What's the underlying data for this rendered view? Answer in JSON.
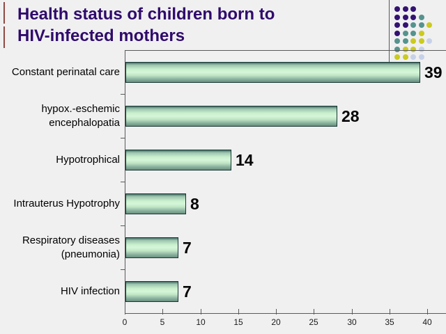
{
  "slide": {
    "title_lines": [
      "Health status of children born to",
      "HIV-infected mothers"
    ],
    "title_color": "#2f0a6b",
    "background": "#f0f0f1"
  },
  "decoration": {
    "accent_bar_color": "#8d4a42",
    "line_color": "#595959",
    "dots": {
      "pattern": [
        "PPP..",
        "PPPT.",
        "PPTTY",
        "PTTY.",
        "TTYYL",
        "TYYL.",
        "YYLL."
      ],
      "colors": {
        "P": "#331272",
        "T": "#55938e",
        "Y": "#cbca1e",
        "L": "#c6d1e9"
      }
    }
  },
  "chart_data": {
    "type": "bar",
    "orientation": "horizontal",
    "title": "",
    "categories": [
      "Constant perinatal care",
      "hypox.-eschemic encephalopatia",
      "Hypotrophical",
      "Intrauterus Hypotrophy",
      "Respiratory diseases (pneumonia)",
      "HIV infection"
    ],
    "category_lines": [
      [
        "Constant perinatal care"
      ],
      [
        "hypox.-eschemic",
        "encephalopatia"
      ],
      [
        "Hypotrophical"
      ],
      [
        "Intrauterus Hypotrophy"
      ],
      [
        "Respiratory diseases",
        "(pneumonia)"
      ],
      [
        "HIV infection"
      ]
    ],
    "values": [
      39,
      28,
      14,
      8,
      7,
      7
    ],
    "x_ticks": [
      0,
      5,
      10,
      15,
      20,
      25,
      30,
      35,
      40
    ],
    "xlim": [
      0,
      40
    ],
    "grid": false,
    "legend": false,
    "axis_color": "#595959",
    "tick_label_color": "#1a1a1a",
    "bar_outline_color": "#173733",
    "bar_gradient": [
      "#476f66",
      "#9cc3ae",
      "#c9f0cd",
      "#d6f6d9",
      "#bfe5c5",
      "#8db4a1",
      "#68907f"
    ]
  }
}
